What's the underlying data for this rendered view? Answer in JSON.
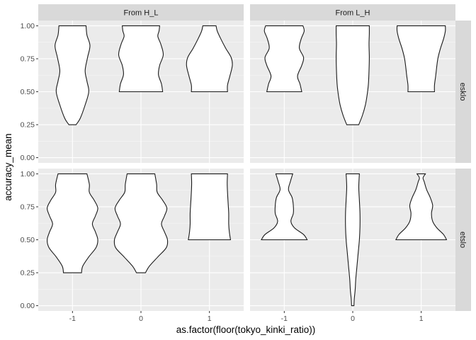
{
  "chart_data": {
    "type": "violin",
    "xlabel": "as.factor(floor(tokyo_kinki_ratio))",
    "ylabel": "accuracy_mean",
    "categories": [
      "-1",
      "0",
      "1"
    ],
    "ylim": [
      -0.04,
      1.04
    ],
    "yticks": [
      "0.00",
      "0.25",
      "0.50",
      "0.75",
      "1.00"
    ],
    "ytick_values": [
      0,
      0.25,
      0.5,
      0.75,
      1
    ],
    "facet_columns": [
      "From H_L",
      "From L_H"
    ],
    "facet_rows": [
      "esklo",
      "etslo"
    ],
    "grid": true,
    "colors": {
      "panel_bg": "#ebebeb",
      "strip_bg": "#d9d9d9",
      "grid_major": "#ffffff",
      "grid_minor": "#f5f5f5",
      "violin_fill": "#ffffff",
      "violin_stroke": "#1a1a1a",
      "tick_color": "#333333"
    },
    "panels": [
      {
        "col": "From H_L",
        "row": "esklo",
        "violins": [
          {
            "x": "-1",
            "profile": [
              [
                0.25,
                0.12
              ],
              [
                0.3,
                0.26
              ],
              [
                0.4,
                0.42
              ],
              [
                0.5,
                0.54
              ],
              [
                0.58,
                0.48
              ],
              [
                0.66,
                0.42
              ],
              [
                0.76,
                0.5
              ],
              [
                0.85,
                0.58
              ],
              [
                0.93,
                0.48
              ],
              [
                1.0,
                0.45
              ]
            ]
          },
          {
            "x": "0",
            "profile": [
              [
                0.5,
                0.72
              ],
              [
                0.56,
                0.68
              ],
              [
                0.63,
                0.58
              ],
              [
                0.7,
                0.62
              ],
              [
                0.78,
                0.74
              ],
              [
                0.86,
                0.66
              ],
              [
                0.92,
                0.56
              ],
              [
                0.96,
                0.6
              ],
              [
                1.0,
                0.62
              ]
            ]
          },
          {
            "x": "1",
            "profile": [
              [
                0.5,
                0.6
              ],
              [
                0.55,
                0.6
              ],
              [
                0.62,
                0.68
              ],
              [
                0.7,
                0.76
              ],
              [
                0.76,
                0.72
              ],
              [
                0.83,
                0.54
              ],
              [
                0.9,
                0.38
              ],
              [
                0.96,
                0.26
              ],
              [
                1.0,
                0.22
              ]
            ]
          }
        ]
      },
      {
        "col": "From L_H",
        "row": "esklo",
        "violins": [
          {
            "x": "-1",
            "profile": [
              [
                0.5,
                0.58
              ],
              [
                0.56,
                0.52
              ],
              [
                0.62,
                0.44
              ],
              [
                0.7,
                0.58
              ],
              [
                0.76,
                0.64
              ],
              [
                0.83,
                0.5
              ],
              [
                0.9,
                0.56
              ],
              [
                0.96,
                0.66
              ],
              [
                1.0,
                0.62
              ]
            ]
          },
          {
            "x": "0",
            "profile": [
              [
                0.25,
                0.2
              ],
              [
                0.32,
                0.32
              ],
              [
                0.4,
                0.42
              ],
              [
                0.48,
                0.48
              ],
              [
                0.56,
                0.52
              ],
              [
                0.66,
                0.54
              ],
              [
                0.76,
                0.55
              ],
              [
                0.86,
                0.54
              ],
              [
                0.94,
                0.55
              ],
              [
                1.0,
                0.55
              ]
            ]
          },
          {
            "x": "1",
            "profile": [
              [
                0.5,
                0.44
              ],
              [
                0.55,
                0.44
              ],
              [
                0.62,
                0.48
              ],
              [
                0.7,
                0.52
              ],
              [
                0.76,
                0.56
              ],
              [
                0.83,
                0.64
              ],
              [
                0.9,
                0.74
              ],
              [
                0.96,
                0.8
              ],
              [
                1.0,
                0.8
              ]
            ]
          }
        ]
      },
      {
        "col": "From H_L",
        "row": "etslo",
        "violins": [
          {
            "x": "-1",
            "profile": [
              [
                0.25,
                0.3
              ],
              [
                0.3,
                0.34
              ],
              [
                0.37,
                0.54
              ],
              [
                0.44,
                0.78
              ],
              [
                0.5,
                0.84
              ],
              [
                0.56,
                0.76
              ],
              [
                0.62,
                0.66
              ],
              [
                0.68,
                0.76
              ],
              [
                0.74,
                0.84
              ],
              [
                0.8,
                0.72
              ],
              [
                0.86,
                0.56
              ],
              [
                0.92,
                0.56
              ],
              [
                1.0,
                0.48
              ]
            ]
          },
          {
            "x": "0",
            "profile": [
              [
                0.25,
                0.15
              ],
              [
                0.3,
                0.28
              ],
              [
                0.37,
                0.56
              ],
              [
                0.44,
                0.84
              ],
              [
                0.5,
                0.88
              ],
              [
                0.56,
                0.78
              ],
              [
                0.62,
                0.68
              ],
              [
                0.68,
                0.78
              ],
              [
                0.74,
                0.86
              ],
              [
                0.8,
                0.72
              ],
              [
                0.86,
                0.54
              ],
              [
                0.92,
                0.52
              ],
              [
                1.0,
                0.46
              ]
            ]
          },
          {
            "x": "1",
            "profile": [
              [
                0.5,
                0.7
              ],
              [
                0.56,
                0.66
              ],
              [
                0.62,
                0.64
              ],
              [
                0.7,
                0.64
              ],
              [
                0.78,
                0.62
              ],
              [
                0.86,
                0.6
              ],
              [
                0.93,
                0.59
              ],
              [
                1.0,
                0.6
              ]
            ]
          }
        ]
      },
      {
        "col": "From L_H",
        "row": "etslo",
        "violins": [
          {
            "x": "-1",
            "profile": [
              [
                0.5,
                0.76
              ],
              [
                0.54,
                0.64
              ],
              [
                0.59,
                0.34
              ],
              [
                0.64,
                0.22
              ],
              [
                0.7,
                0.3
              ],
              [
                0.76,
                0.3
              ],
              [
                0.82,
                0.26
              ],
              [
                0.88,
                0.14
              ],
              [
                0.94,
                0.2
              ],
              [
                1.0,
                0.28
              ]
            ]
          },
          {
            "x": "0",
            "profile": [
              [
                0.0,
                0.04
              ],
              [
                0.05,
                0.05
              ],
              [
                0.12,
                0.08
              ],
              [
                0.2,
                0.1
              ],
              [
                0.3,
                0.14
              ],
              [
                0.4,
                0.18
              ],
              [
                0.5,
                0.22
              ],
              [
                0.6,
                0.24
              ],
              [
                0.7,
                0.24
              ],
              [
                0.8,
                0.22
              ],
              [
                0.9,
                0.2
              ],
              [
                1.0,
                0.22
              ]
            ]
          },
          {
            "x": "1",
            "profile": [
              [
                0.5,
                0.84
              ],
              [
                0.54,
                0.74
              ],
              [
                0.59,
                0.52
              ],
              [
                0.64,
                0.38
              ],
              [
                0.7,
                0.34
              ],
              [
                0.76,
                0.38
              ],
              [
                0.82,
                0.3
              ],
              [
                0.88,
                0.18
              ],
              [
                0.94,
                0.1
              ],
              [
                0.97,
                0.06
              ],
              [
                1.0,
                0.14
              ]
            ]
          }
        ]
      }
    ]
  }
}
